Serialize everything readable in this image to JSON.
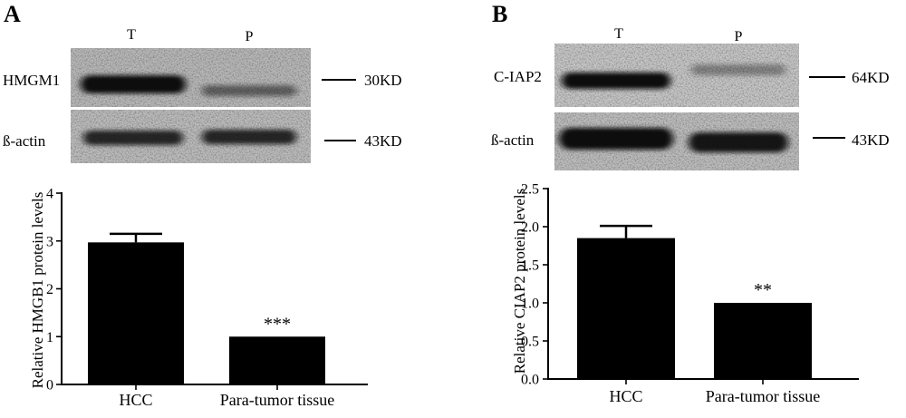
{
  "panels": [
    {
      "label": "A",
      "blot": {
        "lanes": [
          "T",
          "P"
        ],
        "rows": [
          {
            "label": "HMGM1",
            "size": "30KD",
            "band_intensity": [
              1.0,
              0.5
            ]
          },
          {
            "label": "ß-actin",
            "size": "43KD",
            "band_intensity": [
              0.85,
              0.85
            ]
          }
        ]
      }
    },
    {
      "label": "B",
      "blot": {
        "lanes": [
          "T",
          "P"
        ],
        "rows": [
          {
            "label": "C-IAP2",
            "size": "64KD",
            "band_intensity": [
              1.0,
              0.35
            ]
          },
          {
            "label": "ß-actin",
            "size": "43KD",
            "band_intensity": [
              1.0,
              0.95
            ]
          }
        ]
      }
    }
  ],
  "chart_data": [
    {
      "type": "bar",
      "ylabel": "Relative HMGB1 protein levels",
      "categories": [
        "HCC",
        "Para-tumor tissue"
      ],
      "values": [
        2.97,
        1.0
      ],
      "error_upper": [
        0.18,
        0
      ],
      "significance": [
        "",
        "***"
      ],
      "ylim": [
        0,
        4
      ],
      "yticks": [
        0,
        1,
        2,
        3,
        4
      ],
      "ytick_labels": [
        "0",
        "1",
        "2",
        "3",
        "4"
      ],
      "grid": false,
      "bar_color": "#000000"
    },
    {
      "type": "bar",
      "ylabel": "Relative CIAP2 protein levels",
      "categories": [
        "HCC",
        "Para-tumor tissue"
      ],
      "values": [
        1.85,
        1.0
      ],
      "error_upper": [
        0.16,
        0
      ],
      "significance": [
        "",
        "**"
      ],
      "ylim": [
        0,
        2.5
      ],
      "yticks": [
        0,
        0.5,
        1.0,
        1.5,
        2.0,
        2.5
      ],
      "ytick_labels": [
        "0.0",
        "0.5",
        "1.0",
        "1.5",
        "2.0",
        "2.5"
      ],
      "grid": false,
      "bar_color": "#000000"
    }
  ]
}
